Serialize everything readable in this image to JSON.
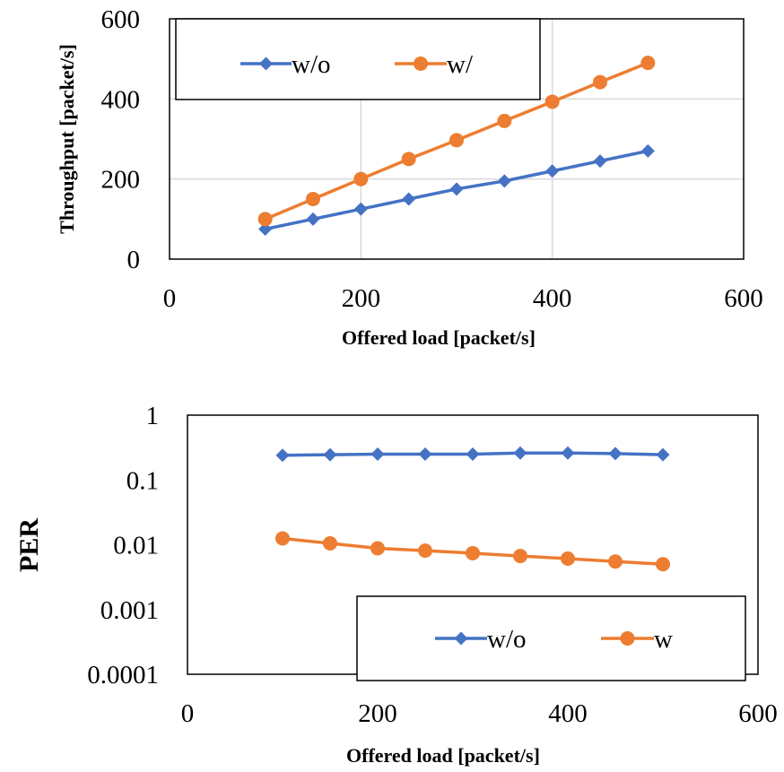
{
  "chart_data": [
    {
      "type": "scatter",
      "title": "",
      "xlabel": "Offered load [packet/s]",
      "ylabel": "Throughput [packet/s]",
      "xlim": [
        0,
        600
      ],
      "ylim": [
        0,
        600
      ],
      "x_ticks": [
        "0",
        "200",
        "400",
        "600"
      ],
      "y_ticks": [
        "0",
        "200",
        "400",
        "600"
      ],
      "grid": true,
      "legend_position": "top-left",
      "x": [
        100,
        150,
        200,
        250,
        300,
        350,
        400,
        450,
        500
      ],
      "series": [
        {
          "name": "w/o",
          "color": "#4472C4",
          "marker": "diamond",
          "values": [
            75,
            100,
            125,
            150,
            175,
            195,
            220,
            245,
            270
          ]
        },
        {
          "name": "w/",
          "color": "#ED7D31",
          "marker": "circle",
          "values": [
            100,
            150,
            200,
            250,
            297,
            345,
            393,
            442,
            490
          ]
        }
      ]
    },
    {
      "type": "scatter",
      "title": "",
      "xlabel": "Offered load [packet/s]",
      "ylabel": "PER",
      "yscale": "log",
      "xlim": [
        0,
        600
      ],
      "ylim": [
        0.0001,
        1
      ],
      "x_ticks": [
        "0",
        "200",
        "400",
        "600"
      ],
      "y_ticks": [
        "0.0001",
        "0.001",
        "0.01",
        "0.1",
        "1"
      ],
      "grid": false,
      "legend_position": "bottom-right",
      "x": [
        100,
        150,
        200,
        250,
        300,
        350,
        400,
        450,
        500
      ],
      "series": [
        {
          "name": "w/o",
          "color": "#4472C4",
          "marker": "diamond",
          "values": [
            0.24,
            0.245,
            0.25,
            0.25,
            0.25,
            0.26,
            0.26,
            0.255,
            0.245
          ]
        },
        {
          "name": "w",
          "color": "#ED7D31",
          "marker": "circle",
          "values": [
            0.0125,
            0.0105,
            0.0088,
            0.0081,
            0.0074,
            0.0067,
            0.0061,
            0.0055,
            0.005
          ]
        }
      ]
    }
  ]
}
